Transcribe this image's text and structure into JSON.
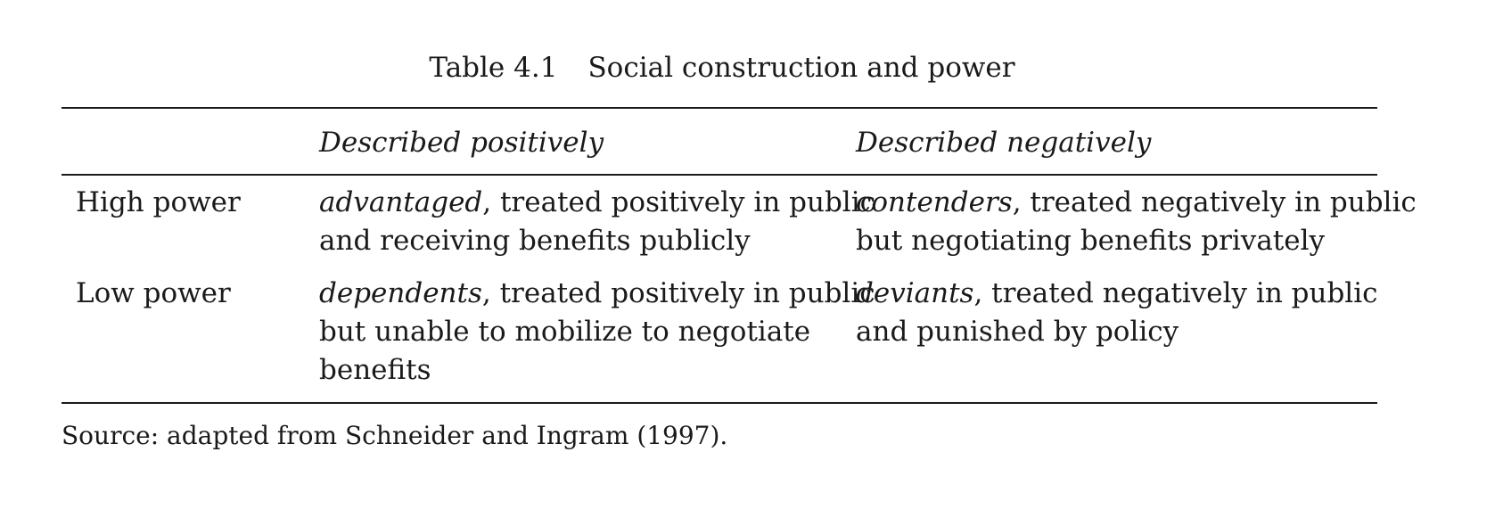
{
  "caption": {
    "number": "Table 4.1",
    "title": "Social construction and power"
  },
  "table": {
    "columns": [
      "",
      "Described positively",
      "Described negatively"
    ],
    "rows": [
      {
        "label": "High power",
        "positive": {
          "term": "advantaged",
          "lines": [
            ", treated positively in public",
            "and receiving benefits publicly"
          ]
        },
        "negative": {
          "term": "contenders",
          "lines": [
            ", treated negatively in public",
            "but negotiating benefits privately"
          ]
        }
      },
      {
        "label": "Low power",
        "positive": {
          "term": "dependents",
          "lines": [
            ", treated positively in public",
            "but unable to mobilize to negotiate",
            "benefits"
          ]
        },
        "negative": {
          "term": "deviants",
          "lines": [
            ", treated negatively in public",
            "and punished by policy"
          ]
        }
      }
    ]
  },
  "source": "Source: adapted from Schneider and Ingram (1997)."
}
